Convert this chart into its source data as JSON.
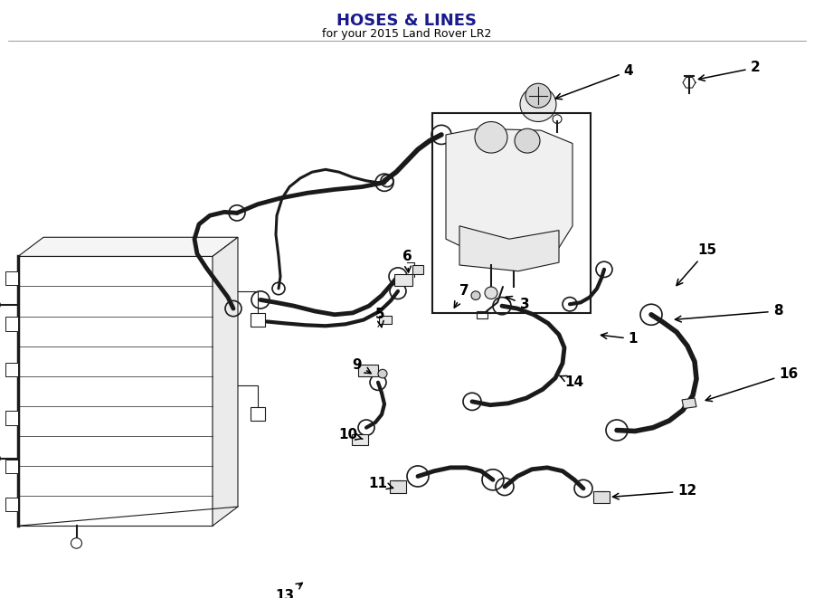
{
  "title": "HOSES & LINES",
  "subtitle": "for your 2015 Land Rover LR2",
  "bg_color": "#ffffff",
  "line_color": "#1a1a1a",
  "lw_thin": 0.8,
  "lw_med": 1.5,
  "lw_thick": 2.5,
  "lw_hose": 3.5,
  "label_positions": {
    "1": [
      0.71,
      0.628,
      0.66,
      0.62
    ],
    "2": [
      0.93,
      0.91,
      0.88,
      0.908
    ],
    "3": [
      0.635,
      0.515,
      0.595,
      0.508
    ],
    "4": [
      0.77,
      0.92,
      0.718,
      0.9
    ],
    "5": [
      0.455,
      0.618,
      0.448,
      0.595
    ],
    "6": [
      0.46,
      0.712,
      0.472,
      0.695
    ],
    "7": [
      0.56,
      0.548,
      0.535,
      0.528
    ],
    "8": [
      0.88,
      0.552,
      0.858,
      0.538
    ],
    "9": [
      0.402,
      0.468,
      0.428,
      0.458
    ],
    "10": [
      0.39,
      0.418,
      0.418,
      0.428
    ],
    "11": [
      0.415,
      0.355,
      0.448,
      0.362
    ],
    "12": [
      0.77,
      0.292,
      0.8,
      0.295
    ],
    "13": [
      0.34,
      0.762,
      0.365,
      0.752
    ],
    "14": [
      0.672,
      0.498,
      0.688,
      0.492
    ],
    "15": [
      0.852,
      0.642,
      0.822,
      0.622
    ],
    "16": [
      0.892,
      0.432,
      0.858,
      0.432
    ]
  }
}
